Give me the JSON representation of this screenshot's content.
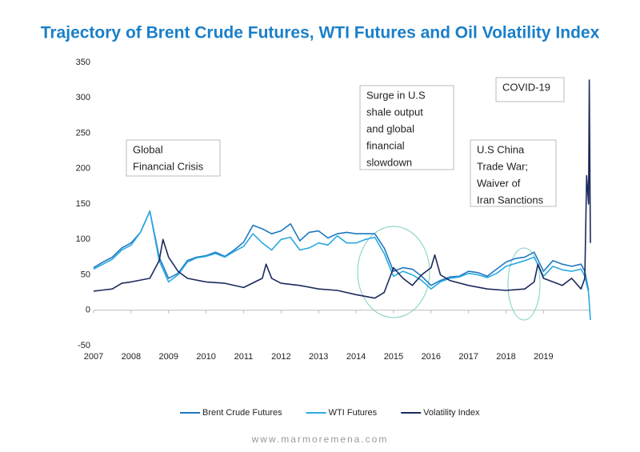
{
  "chart_data": {
    "type": "line",
    "title": "Trajectory of Brent Crude Futures, WTI Futures and Oil Volatility Index",
    "xlim": [
      2007,
      2020.25
    ],
    "xticks": [
      2007,
      2008,
      2009,
      2010,
      2011,
      2012,
      2013,
      2014,
      2015,
      2016,
      2017,
      2018,
      2019
    ],
    "ylim": [
      -50,
      350
    ],
    "yticks": [
      -50,
      0,
      50,
      100,
      150,
      200,
      250,
      300,
      350
    ],
    "legend": "bottom",
    "series": [
      {
        "name": "Brent Crude Futures",
        "color": "#1f78c1",
        "x": [
          2007.0,
          2007.25,
          2007.5,
          2007.75,
          2008.0,
          2008.25,
          2008.5,
          2008.75,
          2009.0,
          2009.25,
          2009.5,
          2009.75,
          2010.0,
          2010.25,
          2010.5,
          2010.75,
          2011.0,
          2011.25,
          2011.5,
          2011.75,
          2012.0,
          2012.25,
          2012.5,
          2012.75,
          2013.0,
          2013.25,
          2013.5,
          2013.75,
          2014.0,
          2014.25,
          2014.5,
          2014.75,
          2015.0,
          2015.25,
          2015.5,
          2015.75,
          2016.0,
          2016.25,
          2016.5,
          2016.75,
          2017.0,
          2017.25,
          2017.5,
          2017.75,
          2018.0,
          2018.25,
          2018.5,
          2018.75,
          2019.0,
          2019.25,
          2019.5,
          2019.75,
          2020.0,
          2020.1,
          2020.2
        ],
        "values": [
          60,
          68,
          75,
          88,
          95,
          110,
          140,
          75,
          45,
          52,
          70,
          75,
          77,
          82,
          76,
          85,
          96,
          120,
          115,
          108,
          112,
          122,
          98,
          110,
          112,
          102,
          108,
          110,
          108,
          108,
          108,
          88,
          55,
          60,
          58,
          48,
          35,
          42,
          47,
          48,
          55,
          53,
          48,
          58,
          68,
          73,
          75,
          82,
          55,
          70,
          65,
          62,
          65,
          55,
          28
        ]
      },
      {
        "name": "WTI Futures",
        "color": "#29a9e0",
        "x": [
          2007.0,
          2007.25,
          2007.5,
          2007.75,
          2008.0,
          2008.25,
          2008.5,
          2008.75,
          2009.0,
          2009.25,
          2009.5,
          2009.75,
          2010.0,
          2010.25,
          2010.5,
          2010.75,
          2011.0,
          2011.25,
          2011.5,
          2011.75,
          2012.0,
          2012.25,
          2012.5,
          2012.75,
          2013.0,
          2013.25,
          2013.5,
          2013.75,
          2014.0,
          2014.25,
          2014.5,
          2014.75,
          2015.0,
          2015.25,
          2015.5,
          2015.75,
          2016.0,
          2016.25,
          2016.5,
          2016.75,
          2017.0,
          2017.25,
          2017.5,
          2017.75,
          2018.0,
          2018.25,
          2018.5,
          2018.75,
          2019.0,
          2019.25,
          2019.5,
          2019.75,
          2020.0,
          2020.1,
          2020.2,
          2020.25
        ],
        "values": [
          58,
          65,
          72,
          85,
          92,
          110,
          140,
          70,
          40,
          50,
          68,
          74,
          76,
          80,
          75,
          83,
          90,
          108,
          95,
          85,
          100,
          103,
          85,
          88,
          95,
          92,
          105,
          95,
          95,
          100,
          103,
          80,
          48,
          55,
          50,
          42,
          30,
          40,
          45,
          47,
          52,
          50,
          46,
          52,
          62,
          66,
          70,
          75,
          48,
          62,
          57,
          55,
          58,
          48,
          25,
          -14
        ]
      },
      {
        "name": "Volatility Index",
        "color": "#1b2a5e",
        "x": [
          2007.0,
          2007.5,
          2007.75,
          2008.0,
          2008.5,
          2008.75,
          2008.85,
          2009.0,
          2009.25,
          2009.5,
          2010.0,
          2010.5,
          2011.0,
          2011.5,
          2011.6,
          2011.75,
          2012.0,
          2012.5,
          2013.0,
          2013.5,
          2014.0,
          2014.5,
          2014.75,
          2015.0,
          2015.25,
          2015.5,
          2015.75,
          2016.0,
          2016.1,
          2016.25,
          2016.5,
          2017.0,
          2017.5,
          2018.0,
          2018.5,
          2018.75,
          2018.85,
          2019.0,
          2019.5,
          2019.75,
          2020.0,
          2020.1,
          2020.15,
          2020.2,
          2020.22,
          2020.25
        ],
        "values": [
          27,
          30,
          38,
          40,
          45,
          70,
          100,
          75,
          55,
          45,
          40,
          38,
          32,
          45,
          65,
          45,
          38,
          35,
          30,
          28,
          22,
          17,
          25,
          60,
          45,
          35,
          50,
          60,
          78,
          50,
          42,
          35,
          30,
          28,
          30,
          40,
          65,
          45,
          35,
          45,
          30,
          45,
          190,
          150,
          325,
          95
        ]
      }
    ],
    "annotations": [
      {
        "lines": [
          "Global",
          "Financial Crisis"
        ]
      },
      {
        "lines": [
          "Surge in U.S",
          "shale output",
          "and global",
          "financial",
          "slowdown"
        ]
      },
      {
        "lines": [
          "U.S China",
          "Trade War;",
          "Waiver of",
          "Iran Sanctions"
        ]
      },
      {
        "lines": [
          "COVID-19"
        ]
      }
    ],
    "footer": "www.marmoremena.com"
  }
}
